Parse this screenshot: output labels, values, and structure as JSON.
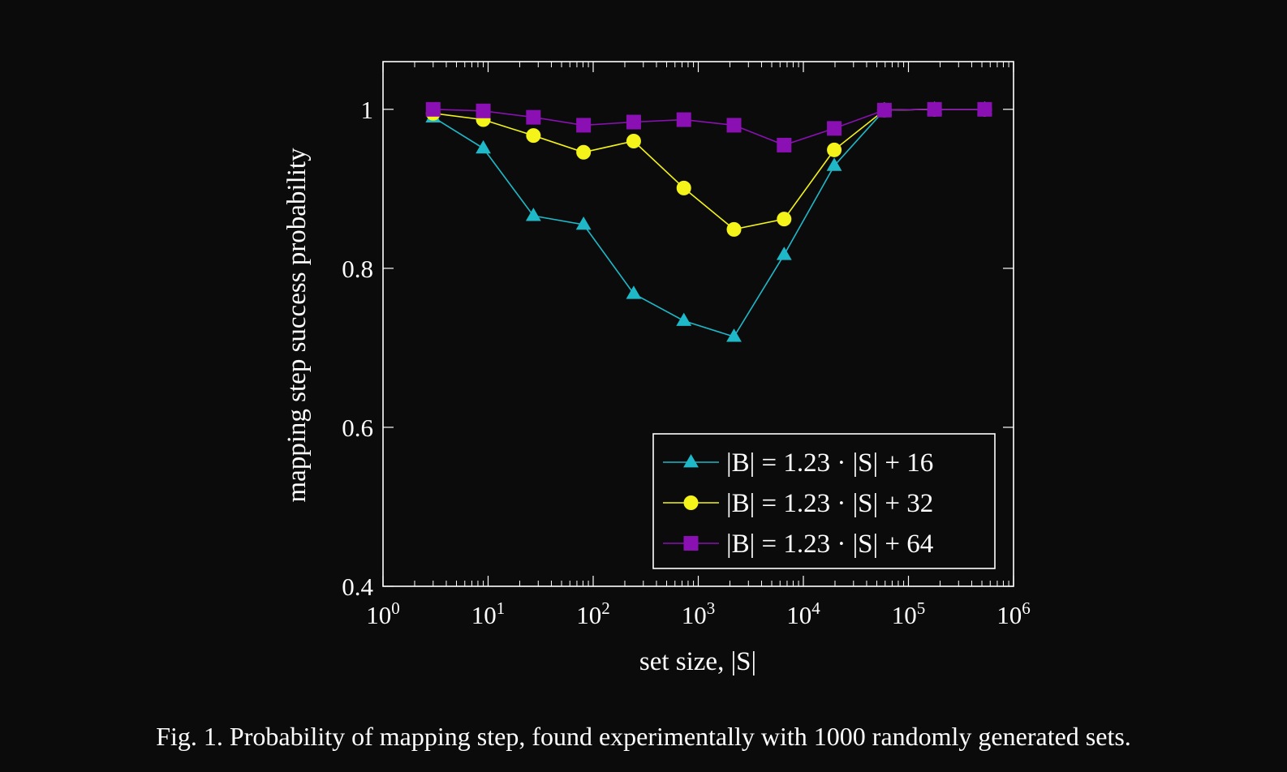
{
  "caption": {
    "text": "Fig. 1.  Probability of mapping step, found experimentally with 1000 randomly generated sets."
  },
  "chart_data": {
    "type": "line",
    "title": "",
    "xlabel": "set size, |S|",
    "ylabel": "mapping step success probability",
    "x_scale": "log10",
    "xlim": [
      1,
      1000000
    ],
    "ylim": [
      0.4,
      1.06
    ],
    "grid": false,
    "legend_position": "bottom-right",
    "x_ticks": [
      {
        "value": 1,
        "base": "10",
        "exp": "0"
      },
      {
        "value": 10,
        "base": "10",
        "exp": "1"
      },
      {
        "value": 100,
        "base": "10",
        "exp": "2"
      },
      {
        "value": 1000,
        "base": "10",
        "exp": "3"
      },
      {
        "value": 10000,
        "base": "10",
        "exp": "4"
      },
      {
        "value": 100000,
        "base": "10",
        "exp": "5"
      },
      {
        "value": 1000000,
        "base": "10",
        "exp": "6"
      }
    ],
    "y_ticks": [
      {
        "value": 0.4,
        "label": "0.4"
      },
      {
        "value": 0.6,
        "label": "0.6"
      },
      {
        "value": 0.8,
        "label": "0.8"
      },
      {
        "value": 1.0,
        "label": "1"
      }
    ],
    "x": [
      3,
      9,
      27,
      81,
      243,
      729,
      2187,
      6561,
      19683,
      59049,
      177147,
      531441
    ],
    "series": [
      {
        "name": "|B| = 1.23 · |S| + 16",
        "color": "#1fb8c8",
        "marker": "triangle",
        "values": [
          0.99,
          0.951,
          0.866,
          0.855,
          0.768,
          0.734,
          0.714,
          0.817,
          0.929,
          0.999,
          1.0,
          1.0
        ]
      },
      {
        "name": "|B| = 1.23 · |S| + 32",
        "color": "#f4f41a",
        "marker": "circle",
        "values": [
          0.995,
          0.987,
          0.967,
          0.946,
          0.96,
          0.901,
          0.849,
          0.862,
          0.949,
          0.999,
          1.0,
          1.0
        ]
      },
      {
        "name": "|B| = 1.23 · |S| + 64",
        "color": "#8a10b4",
        "marker": "square",
        "values": [
          1.0,
          0.998,
          0.99,
          0.98,
          0.984,
          0.987,
          0.98,
          0.955,
          0.976,
          0.999,
          1.0,
          1.0
        ]
      }
    ]
  }
}
